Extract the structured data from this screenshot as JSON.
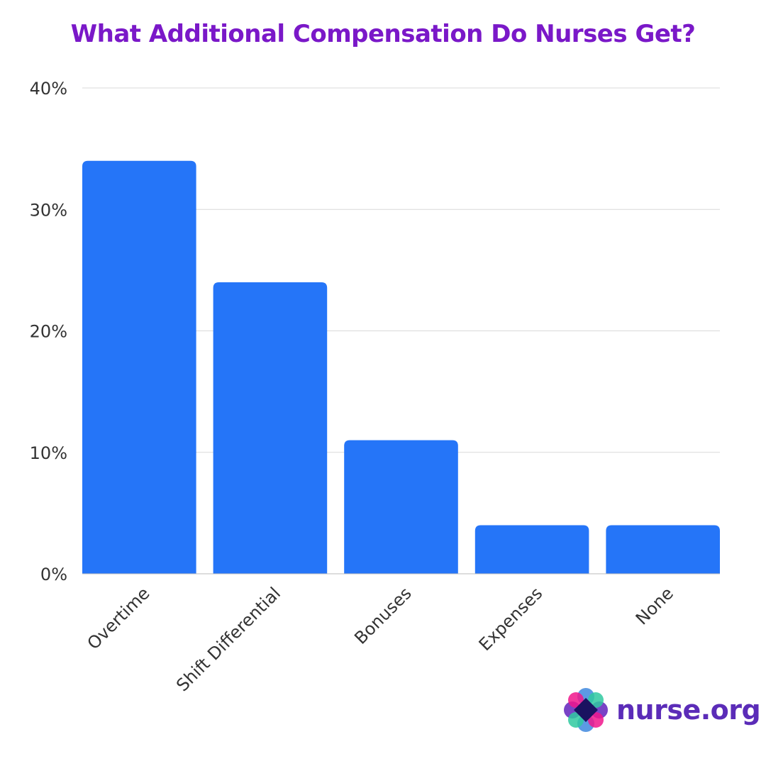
{
  "chart_data": {
    "type": "bar",
    "title": "What Additional Compensation Do Nurses Get?",
    "categories": [
      "Overtime",
      "Shift Differential",
      "Bonuses",
      "Expenses",
      "None"
    ],
    "values": [
      34,
      24,
      11,
      4,
      4
    ],
    "unit": "%",
    "ylim": [
      0,
      40
    ],
    "yticks": [
      "0%",
      "10%",
      "20%",
      "30%",
      "40%"
    ],
    "xlabel": "",
    "ylabel": "",
    "grid": true,
    "legend": "none",
    "bar_color": "#2575f8",
    "title_color": "#7a18c8"
  },
  "logo": {
    "text": "nurse.org"
  }
}
